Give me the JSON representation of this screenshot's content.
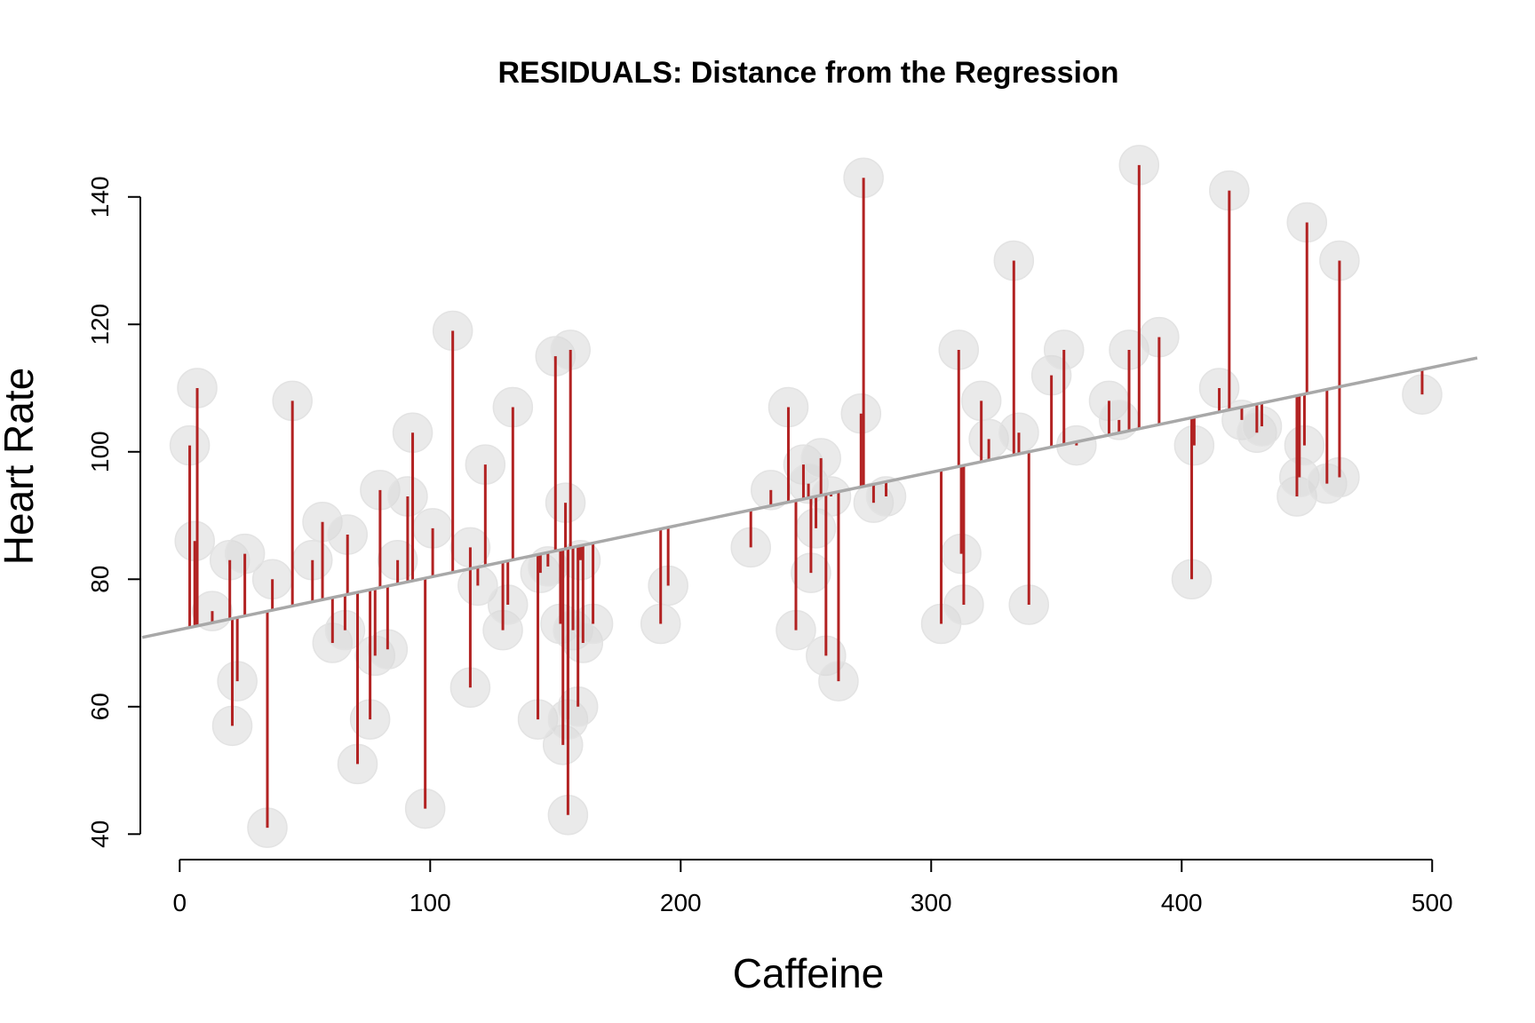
{
  "chart_data": {
    "type": "scatter",
    "title": "RESIDUALS: Distance from the Regression",
    "xlabel": "Caffeine",
    "ylabel": "Heart Rate",
    "xlim": [
      -15,
      518
    ],
    "ylim": [
      36,
      150
    ],
    "xticks": [
      0,
      100,
      200,
      300,
      400,
      500
    ],
    "yticks": [
      40,
      60,
      80,
      100,
      120,
      140
    ],
    "grid": false,
    "colors": {
      "points": "#d9d9d9",
      "residuals": "#b22222",
      "regression": "#a8a8a8"
    },
    "regression": {
      "intercept": 72.1,
      "slope": 0.0823
    },
    "points": [
      {
        "x": 4,
        "y": 101
      },
      {
        "x": 6,
        "y": 86
      },
      {
        "x": 7,
        "y": 110
      },
      {
        "x": 13,
        "y": 75
      },
      {
        "x": 20,
        "y": 83
      },
      {
        "x": 21,
        "y": 57
      },
      {
        "x": 23,
        "y": 64
      },
      {
        "x": 26,
        "y": 84
      },
      {
        "x": 35,
        "y": 41
      },
      {
        "x": 37,
        "y": 80
      },
      {
        "x": 45,
        "y": 108
      },
      {
        "x": 53,
        "y": 83
      },
      {
        "x": 57,
        "y": 89
      },
      {
        "x": 61,
        "y": 70
      },
      {
        "x": 66,
        "y": 72
      },
      {
        "x": 67,
        "y": 87
      },
      {
        "x": 71,
        "y": 51
      },
      {
        "x": 76,
        "y": 58
      },
      {
        "x": 78,
        "y": 68
      },
      {
        "x": 80,
        "y": 94
      },
      {
        "x": 83,
        "y": 69
      },
      {
        "x": 87,
        "y": 83
      },
      {
        "x": 91,
        "y": 93
      },
      {
        "x": 93,
        "y": 103
      },
      {
        "x": 98,
        "y": 44
      },
      {
        "x": 101,
        "y": 88
      },
      {
        "x": 109,
        "y": 119
      },
      {
        "x": 116,
        "y": 85
      },
      {
        "x": 116,
        "y": 63
      },
      {
        "x": 119,
        "y": 79
      },
      {
        "x": 122,
        "y": 98
      },
      {
        "x": 129,
        "y": 72
      },
      {
        "x": 131,
        "y": 76
      },
      {
        "x": 133,
        "y": 107
      },
      {
        "x": 143,
        "y": 58
      },
      {
        "x": 144,
        "y": 81
      },
      {
        "x": 147,
        "y": 82
      },
      {
        "x": 150,
        "y": 115
      },
      {
        "x": 152,
        "y": 73
      },
      {
        "x": 153,
        "y": 54
      },
      {
        "x": 154,
        "y": 92
      },
      {
        "x": 155,
        "y": 58
      },
      {
        "x": 155,
        "y": 43
      },
      {
        "x": 156,
        "y": 116
      },
      {
        "x": 157,
        "y": 72
      },
      {
        "x": 159,
        "y": 60
      },
      {
        "x": 161,
        "y": 70
      },
      {
        "x": 160,
        "y": 83
      },
      {
        "x": 165,
        "y": 73
      },
      {
        "x": 192,
        "y": 73
      },
      {
        "x": 195,
        "y": 79
      },
      {
        "x": 228,
        "y": 85
      },
      {
        "x": 236,
        "y": 94
      },
      {
        "x": 243,
        "y": 107
      },
      {
        "x": 246,
        "y": 72
      },
      {
        "x": 249,
        "y": 98
      },
      {
        "x": 251,
        "y": 95
      },
      {
        "x": 252,
        "y": 81
      },
      {
        "x": 254,
        "y": 88
      },
      {
        "x": 256,
        "y": 99
      },
      {
        "x": 258,
        "y": 68
      },
      {
        "x": 260,
        "y": 93
      },
      {
        "x": 263,
        "y": 64
      },
      {
        "x": 272,
        "y": 106
      },
      {
        "x": 273,
        "y": 143
      },
      {
        "x": 277,
        "y": 92
      },
      {
        "x": 282,
        "y": 93
      },
      {
        "x": 304,
        "y": 73
      },
      {
        "x": 311,
        "y": 116
      },
      {
        "x": 312,
        "y": 84
      },
      {
        "x": 313,
        "y": 76
      },
      {
        "x": 320,
        "y": 108
      },
      {
        "x": 323,
        "y": 102
      },
      {
        "x": 333,
        "y": 130
      },
      {
        "x": 335,
        "y": 103
      },
      {
        "x": 339,
        "y": 76
      },
      {
        "x": 348,
        "y": 112
      },
      {
        "x": 353,
        "y": 116
      },
      {
        "x": 358,
        "y": 101
      },
      {
        "x": 371,
        "y": 108
      },
      {
        "x": 375,
        "y": 105
      },
      {
        "x": 379,
        "y": 116
      },
      {
        "x": 383,
        "y": 145
      },
      {
        "x": 391,
        "y": 118
      },
      {
        "x": 404,
        "y": 80
      },
      {
        "x": 405,
        "y": 101
      },
      {
        "x": 415,
        "y": 110
      },
      {
        "x": 419,
        "y": 141
      },
      {
        "x": 424,
        "y": 105
      },
      {
        "x": 430,
        "y": 103
      },
      {
        "x": 432,
        "y": 104
      },
      {
        "x": 446,
        "y": 93
      },
      {
        "x": 447,
        "y": 96
      },
      {
        "x": 449,
        "y": 101
      },
      {
        "x": 450,
        "y": 136
      },
      {
        "x": 458,
        "y": 95
      },
      {
        "x": 463,
        "y": 96
      },
      {
        "x": 463,
        "y": 130
      },
      {
        "x": 496,
        "y": 109
      }
    ]
  }
}
